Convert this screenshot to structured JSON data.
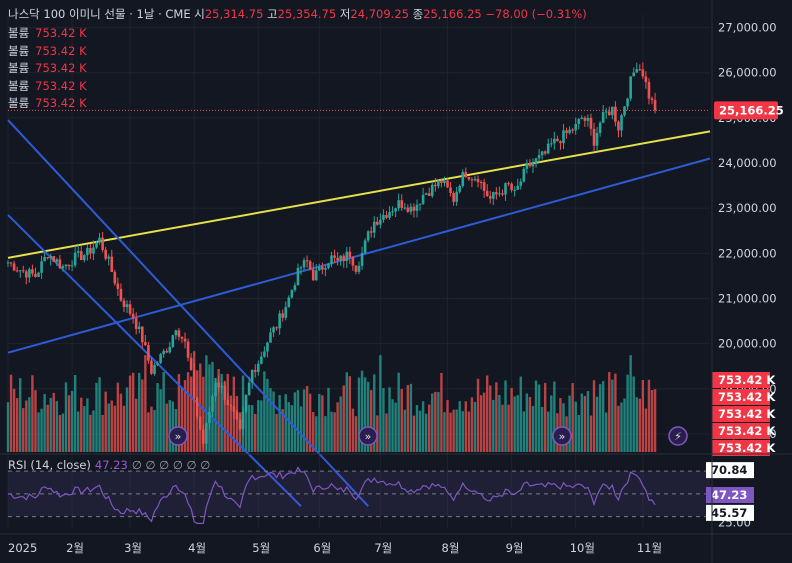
{
  "header": {
    "title": "나스닥 100 이미니 선물 · 1날 · CME",
    "open_label": "시",
    "open": "25,314.75",
    "high_label": "고",
    "high": "25,354.75",
    "low_label": "저",
    "low": "24,709.25",
    "close_label": "종",
    "close": "25,166.25",
    "change": "−78.00 (−0.31%)"
  },
  "volume_legend": [
    {
      "label": "볼륨",
      "value": "753.42 K"
    },
    {
      "label": "볼륨",
      "value": "753.42 K"
    },
    {
      "label": "볼륨",
      "value": "753.42 K"
    },
    {
      "label": "볼륨",
      "value": "753.42 K"
    },
    {
      "label": "볼륨",
      "value": "753.42 K"
    }
  ],
  "rsi_legend": {
    "label": "RSI (14, close)",
    "value": "47.23",
    "extras": "∅ ∅ ∅ ∅ ∅ ∅"
  },
  "price_badge": "25,166.25",
  "volume_badges": [
    "753.42 K",
    "753.42 K",
    "753.42 K",
    "753.42 K",
    "753.42 K",
    "753.42 K"
  ],
  "rsi_badges": [
    "70.84",
    "47.23",
    "45.57"
  ],
  "colors": {
    "up": "#26a69a",
    "down": "#ef5350",
    "yellow_line": "#e6e14a",
    "blue_line": "#2e5bd6",
    "rsi": "#7e57c2"
  },
  "chart_data": {
    "type": "candlestick",
    "price_axis": {
      "ticks": [
        "27,000.00",
        "26,000.00",
        "25,000.00",
        "24,000.00",
        "23,000.00",
        "22,000.00",
        "21,000.00",
        "20,000.00",
        "19,000.00",
        "18,000.00"
      ],
      "ylim": [
        17600,
        27300
      ]
    },
    "rsi_axis": {
      "ticks": [
        "25.00"
      ],
      "ylim": [
        20,
        85
      ],
      "upper_band": 70,
      "lower_band": 30
    },
    "x_axis": {
      "labels": [
        "2025",
        "2월",
        "3월",
        "4월",
        "5월",
        "6월",
        "7월",
        "8월",
        "9월",
        "10월",
        "11월"
      ],
      "positions": [
        0,
        21,
        40,
        61,
        82,
        102,
        122,
        144,
        165,
        186,
        208
      ],
      "xlim": [
        0,
        230
      ]
    },
    "ohlc_anchors": [
      [
        0,
        21800
      ],
      [
        5,
        21600
      ],
      [
        9,
        21500
      ],
      [
        13,
        22000
      ],
      [
        18,
        21700
      ],
      [
        22,
        21900
      ],
      [
        26,
        22000
      ],
      [
        30,
        22300
      ],
      [
        33,
        21800
      ],
      [
        37,
        21000
      ],
      [
        41,
        20600
      ],
      [
        44,
        20100
      ],
      [
        47,
        19400
      ],
      [
        50,
        19700
      ],
      [
        53,
        20000
      ],
      [
        55,
        20400
      ],
      [
        58,
        20000
      ],
      [
        60,
        19300
      ],
      [
        62,
        18400
      ],
      [
        64,
        17800
      ],
      [
        66,
        18500
      ],
      [
        68,
        19200
      ],
      [
        70,
        19000
      ],
      [
        72,
        18700
      ],
      [
        74,
        18400
      ],
      [
        76,
        18000
      ],
      [
        78,
        18800
      ],
      [
        80,
        19400
      ],
      [
        82,
        19600
      ],
      [
        84,
        19900
      ],
      [
        86,
        20200
      ],
      [
        88,
        20400
      ],
      [
        90,
        20700
      ],
      [
        92,
        21000
      ],
      [
        94,
        21400
      ],
      [
        96,
        21700
      ],
      [
        98,
        21800
      ],
      [
        100,
        21500
      ],
      [
        102,
        21600
      ],
      [
        104,
        21800
      ],
      [
        106,
        21900
      ],
      [
        108,
        21800
      ],
      [
        110,
        21900
      ],
      [
        112,
        22000
      ],
      [
        114,
        21700
      ],
      [
        116,
        22000
      ],
      [
        118,
        22400
      ],
      [
        120,
        22700
      ],
      [
        122,
        22800
      ],
      [
        124,
        22900
      ],
      [
        126,
        23000
      ],
      [
        128,
        23100
      ],
      [
        130,
        23100
      ],
      [
        132,
        23000
      ],
      [
        134,
        23100
      ],
      [
        136,
        23300
      ],
      [
        138,
        23400
      ],
      [
        140,
        23500
      ],
      [
        142,
        23600
      ],
      [
        144,
        23400
      ],
      [
        146,
        23200
      ],
      [
        148,
        23600
      ],
      [
        150,
        23800
      ],
      [
        152,
        23700
      ],
      [
        154,
        23700
      ],
      [
        156,
        23400
      ],
      [
        158,
        23200
      ],
      [
        160,
        23300
      ],
      [
        162,
        23400
      ],
      [
        164,
        23500
      ],
      [
        166,
        23300
      ],
      [
        168,
        23600
      ],
      [
        170,
        23900
      ],
      [
        172,
        24000
      ],
      [
        174,
        24100
      ],
      [
        176,
        24200
      ],
      [
        178,
        24400
      ],
      [
        180,
        24500
      ],
      [
        182,
        24600
      ],
      [
        184,
        24700
      ],
      [
        186,
        24800
      ],
      [
        188,
        25000
      ],
      [
        190,
        24900
      ],
      [
        192,
        24500
      ],
      [
        194,
        24900
      ],
      [
        196,
        25100
      ],
      [
        198,
        25200
      ],
      [
        200,
        24800
      ],
      [
        202,
        25300
      ],
      [
        204,
        25800
      ],
      [
        206,
        26200
      ],
      [
        208,
        26000
      ],
      [
        210,
        25500
      ],
      [
        212,
        25166
      ]
    ],
    "volume_baseline": 753420,
    "trendlines": [
      {
        "color": "yellow",
        "from": [
          0,
          21900
        ],
        "to": [
          230,
          24700
        ]
      },
      {
        "color": "blue",
        "from": [
          0,
          19800
        ],
        "to": [
          230,
          24100
        ]
      },
      {
        "color": "blue",
        "from": [
          0,
          24950
        ],
        "to": [
          118,
          16400
        ]
      },
      {
        "color": "blue",
        "from": [
          0,
          22850
        ],
        "to": [
          96,
          16400
        ]
      }
    ]
  }
}
